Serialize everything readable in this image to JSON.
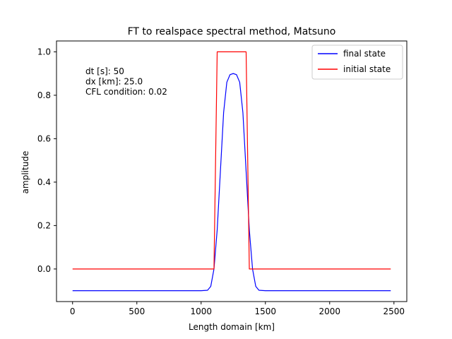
{
  "chart_data": {
    "type": "line",
    "title": "FT to realspace  spectral method, Matsuno",
    "xlabel": "Length domain [km]",
    "ylabel": "amplitude",
    "xlim": [
      -125,
      2600
    ],
    "ylim": [
      -0.15,
      1.05
    ],
    "xticks": [
      0,
      500,
      1000,
      1500,
      2000,
      2500
    ],
    "yticks": [
      0.0,
      0.2,
      0.4,
      0.6,
      0.8,
      1.0
    ],
    "xtick_labels": [
      "0",
      "500",
      "1000",
      "1500",
      "2000",
      "2500"
    ],
    "ytick_labels": [
      "0.0",
      "0.2",
      "0.4",
      "0.6",
      "0.8",
      "1.0"
    ],
    "grid": false,
    "legend_position": "top-right",
    "annotations": [
      "dt [s]: 50",
      "dx [km]: 25.0",
      "CFL condition: 0.02"
    ],
    "series": [
      {
        "name": "final state",
        "color": "#0000ff",
        "x": [
          0,
          500,
          900,
          1000,
          1050,
          1075,
          1100,
          1125,
          1150,
          1175,
          1200,
          1225,
          1250,
          1275,
          1300,
          1325,
          1350,
          1375,
          1400,
          1425,
          1450,
          1500,
          2000,
          2475
        ],
        "y": [
          -0.1,
          -0.1,
          -0.1,
          -0.1,
          -0.098,
          -0.08,
          0.0,
          0.18,
          0.45,
          0.72,
          0.86,
          0.895,
          0.9,
          0.895,
          0.86,
          0.72,
          0.45,
          0.18,
          0.0,
          -0.08,
          -0.098,
          -0.1,
          -0.1,
          -0.1
        ]
      },
      {
        "name": "initial state",
        "color": "#ff0000",
        "x": [
          0,
          1100,
          1125,
          1350,
          1375,
          2475
        ],
        "y": [
          0,
          0,
          1,
          1,
          0,
          0
        ]
      }
    ]
  }
}
